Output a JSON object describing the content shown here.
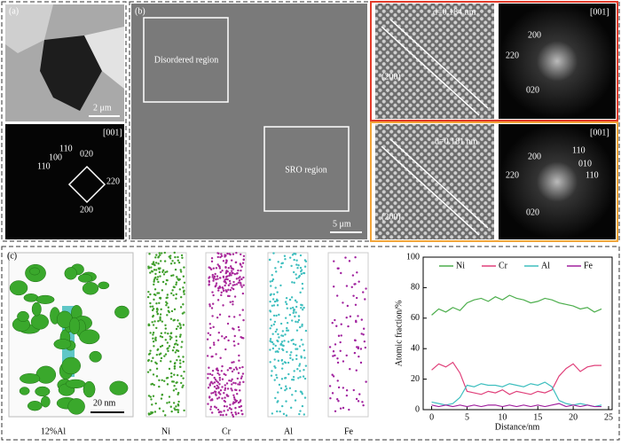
{
  "panel_a": {
    "label": "(a)",
    "scale_bar": "2 μm",
    "zone_axis": "[001]",
    "spots": [
      "110",
      "100",
      "110",
      "020",
      "220",
      "200"
    ]
  },
  "panel_b": {
    "label": "(b)",
    "disordered": "Disordered region",
    "sro": "SRO region",
    "scale_bar": "5 μm",
    "hr_top": {
      "d": "d=0.184 nm",
      "plane": "(200)"
    },
    "fft_top": {
      "zone_axis": "[001]",
      "spots": [
        "200",
        "220",
        "020"
      ]
    },
    "hr_bottom": {
      "d": "d=0.181 nm",
      "plane": "(200)"
    },
    "fft_bottom": {
      "zone_axis": "[001]",
      "spots": [
        "200",
        "110",
        "010",
        "110",
        "220",
        "020"
      ]
    }
  },
  "panel_c": {
    "label": "(c)",
    "composition": "12%Al",
    "scale_bar": "20 nm",
    "elements": [
      "Ni",
      "Cr",
      "Al",
      "Fe"
    ]
  },
  "chart_data": {
    "type": "line",
    "xlabel": "Distance/nm",
    "ylabel": "Atomic fraction/%",
    "xlim": [
      -1.2,
      25.5
    ],
    "xticks": [
      0,
      5,
      10,
      15,
      20,
      25
    ],
    "ylim": [
      0,
      100
    ],
    "yticks": [
      0,
      20,
      40,
      60,
      80,
      100
    ],
    "legend": "top",
    "x": [
      0,
      1,
      2,
      3,
      4,
      5,
      6,
      7,
      8,
      9,
      10,
      11,
      12,
      13,
      14,
      15,
      16,
      17,
      18,
      19,
      20,
      21,
      22,
      23,
      24
    ],
    "series": [
      {
        "name": "Ni",
        "color": "#4cae4c",
        "values": [
          62,
          66,
          64,
          67,
          65,
          70,
          72,
          73,
          71,
          74,
          72,
          75,
          73,
          72,
          70,
          71,
          73,
          72,
          70,
          69,
          68,
          66,
          67,
          64,
          66
        ]
      },
      {
        "name": "Cr",
        "color": "#e0407a",
        "values": [
          26,
          30,
          28,
          31,
          24,
          12,
          11,
          10,
          12,
          11,
          13,
          10,
          12,
          11,
          10,
          12,
          11,
          13,
          22,
          27,
          30,
          25,
          28,
          29,
          29
        ]
      },
      {
        "name": "Al",
        "color": "#3fbfbf",
        "values": [
          5,
          4,
          3,
          4,
          8,
          16,
          15,
          17,
          16,
          16,
          15,
          17,
          16,
          15,
          17,
          16,
          18,
          15,
          6,
          4,
          3,
          4,
          3,
          2,
          3
        ]
      },
      {
        "name": "Fe",
        "color": "#a0209e",
        "values": [
          3,
          2,
          3,
          2,
          3,
          2,
          3,
          2,
          3,
          3,
          2,
          3,
          2,
          3,
          2,
          3,
          2,
          3,
          4,
          2,
          3,
          2,
          3,
          2,
          2
        ]
      }
    ]
  }
}
